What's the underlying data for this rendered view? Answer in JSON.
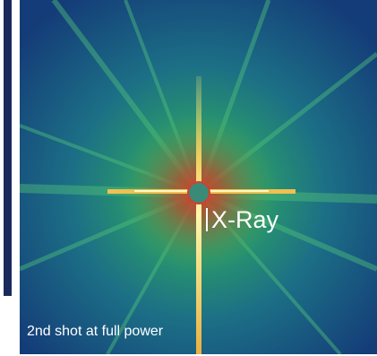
{
  "overlay": {
    "title": "X-Ray",
    "caption": "2nd shot at full power"
  }
}
